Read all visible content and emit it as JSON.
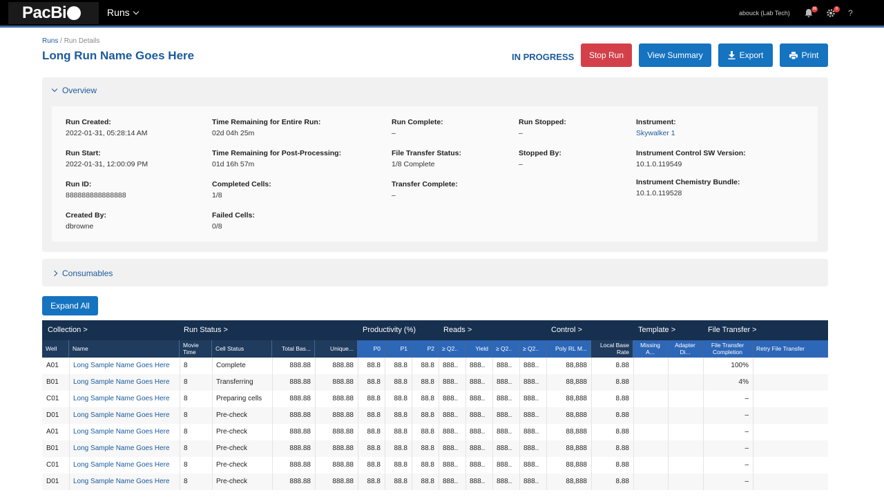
{
  "nav": {
    "logo": "PacBi",
    "runs_menu": "Runs",
    "user": "abouck (Lab Tech)",
    "notifications_count": "99",
    "settings_count": "8",
    "help": "?"
  },
  "breadcrumb": {
    "runs": "Runs",
    "sep": " / ",
    "current": "Run Details"
  },
  "title": "Long Run Name Goes Here",
  "status": "IN PROGRESS",
  "buttons": {
    "stop": "Stop Run",
    "summary": "View Summary",
    "export": "Export",
    "print": "Print"
  },
  "overview": {
    "heading": "Overview",
    "run_created": {
      "label": "Run Created:",
      "value": "2022-01-31, 05:28:14 AM"
    },
    "run_start": {
      "label": "Run Start:",
      "value": "2022-01-31, 12:00:09 PM"
    },
    "run_id": {
      "label": "Run ID:",
      "value": "888888888888888"
    },
    "created_by": {
      "label": "Created By:",
      "value": "dbrowne"
    },
    "time_remaining_entire": {
      "label": "Time Remaining for Entire Run:",
      "value": "02d 04h 25m"
    },
    "time_remaining_post": {
      "label": "Time Remaining for Post-Processing:",
      "value": "01d 16h 57m"
    },
    "completed_cells": {
      "label": "Completed Cells:",
      "value": "1/8"
    },
    "failed_cells": {
      "label": "Failed Cells:",
      "value": "0/8"
    },
    "run_complete": {
      "label": "Run Complete:",
      "value": "–"
    },
    "file_transfer_status": {
      "label": "File Transfer Status:",
      "value": "1/8 Complete"
    },
    "transfer_complete": {
      "label": "Transfer Complete:",
      "value": "–"
    },
    "run_stopped": {
      "label": "Run Stopped:",
      "value": "–"
    },
    "stopped_by": {
      "label": "Stopped By:",
      "value": "–"
    },
    "instrument": {
      "label": "Instrument:",
      "value": "Skywalker 1"
    },
    "control_sw": {
      "label": "Instrument Control SW Version:",
      "value": "10.1.0.119549"
    },
    "chem_bundle": {
      "label": "Instrument Chemistry Bundle:",
      "value": "10.1.0.119528"
    }
  },
  "consumables": {
    "heading": "Consumables"
  },
  "expand_all": "Expand All",
  "table": {
    "groups": [
      "Collection  >",
      "Run Status  >",
      "Productivity (%)",
      "Reads  >",
      "Control  >",
      "Template  >",
      "File Transfer  >"
    ],
    "columns": [
      "Well",
      "Name",
      "Movie Time",
      "Cell Status",
      "Total Bas...",
      "Unique...",
      "P0",
      "P1",
      "P2",
      "≥ Q2..",
      "Yield",
      "≥ Q2..",
      "≥ Q2..",
      "Poly RL M...",
      "Local Base Rate",
      "Missing A...",
      "Adapter Di...",
      "File Transfer Completion",
      "Retry File Transfer"
    ],
    "rows": [
      [
        "A01",
        "Long Sample Name Goes Here",
        "8",
        "Complete",
        "888.88",
        "888.88",
        "88.8",
        "88.8",
        "88.8",
        "888..",
        "888..",
        "888..",
        "888..",
        "88,888",
        "8.88",
        "",
        "",
        "100%",
        ""
      ],
      [
        "B01",
        "Long Sample Name Goes Here",
        "8",
        "Transferring",
        "888.88",
        "888.88",
        "88.8",
        "88.8",
        "88.8",
        "888..",
        "888..",
        "888..",
        "888..",
        "88,888",
        "8.88",
        "",
        "",
        "4%",
        ""
      ],
      [
        "C01",
        "Long Sample Name Goes Here",
        "8",
        "Preparing cells",
        "888.88",
        "888.88",
        "88.8",
        "88.8",
        "88.8",
        "888..",
        "888..",
        "888..",
        "888..",
        "88,888",
        "8.88",
        "",
        "",
        "–",
        ""
      ],
      [
        "D01",
        "Long Sample Name Goes Here",
        "8",
        "Pre-check",
        "888.88",
        "888.88",
        "88.8",
        "88.8",
        "88.8",
        "888..",
        "888..",
        "888..",
        "888..",
        "88,888",
        "8.88",
        "",
        "",
        "–",
        ""
      ],
      [
        "A01",
        "Long Sample Name Goes Here",
        "8",
        "Pre-check",
        "888.88",
        "888.88",
        "88.8",
        "88.8",
        "88.8",
        "888..",
        "888..",
        "888..",
        "888..",
        "88,888",
        "8.88",
        "",
        "",
        "–",
        ""
      ],
      [
        "B01",
        "Long Sample Name Goes Here",
        "8",
        "Pre-check",
        "888.88",
        "888.88",
        "88.8",
        "88.8",
        "88.8",
        "888..",
        "888..",
        "888..",
        "888..",
        "88,888",
        "8.88",
        "",
        "",
        "–",
        ""
      ],
      [
        "C01",
        "Long Sample Name Goes Here",
        "8",
        "Pre-check",
        "888.88",
        "888.88",
        "88.8",
        "88.8",
        "88.8",
        "888..",
        "888..",
        "888..",
        "888..",
        "88,888",
        "8.88",
        "",
        "",
        "–",
        ""
      ],
      [
        "D01",
        "Long Sample Name Goes Here",
        "8",
        "Pre-check",
        "888.88",
        "888.88",
        "88.8",
        "88.8",
        "88.8",
        "888..",
        "888..",
        "888..",
        "888..",
        "88,888",
        "8.88",
        "",
        "",
        "–",
        ""
      ]
    ]
  }
}
